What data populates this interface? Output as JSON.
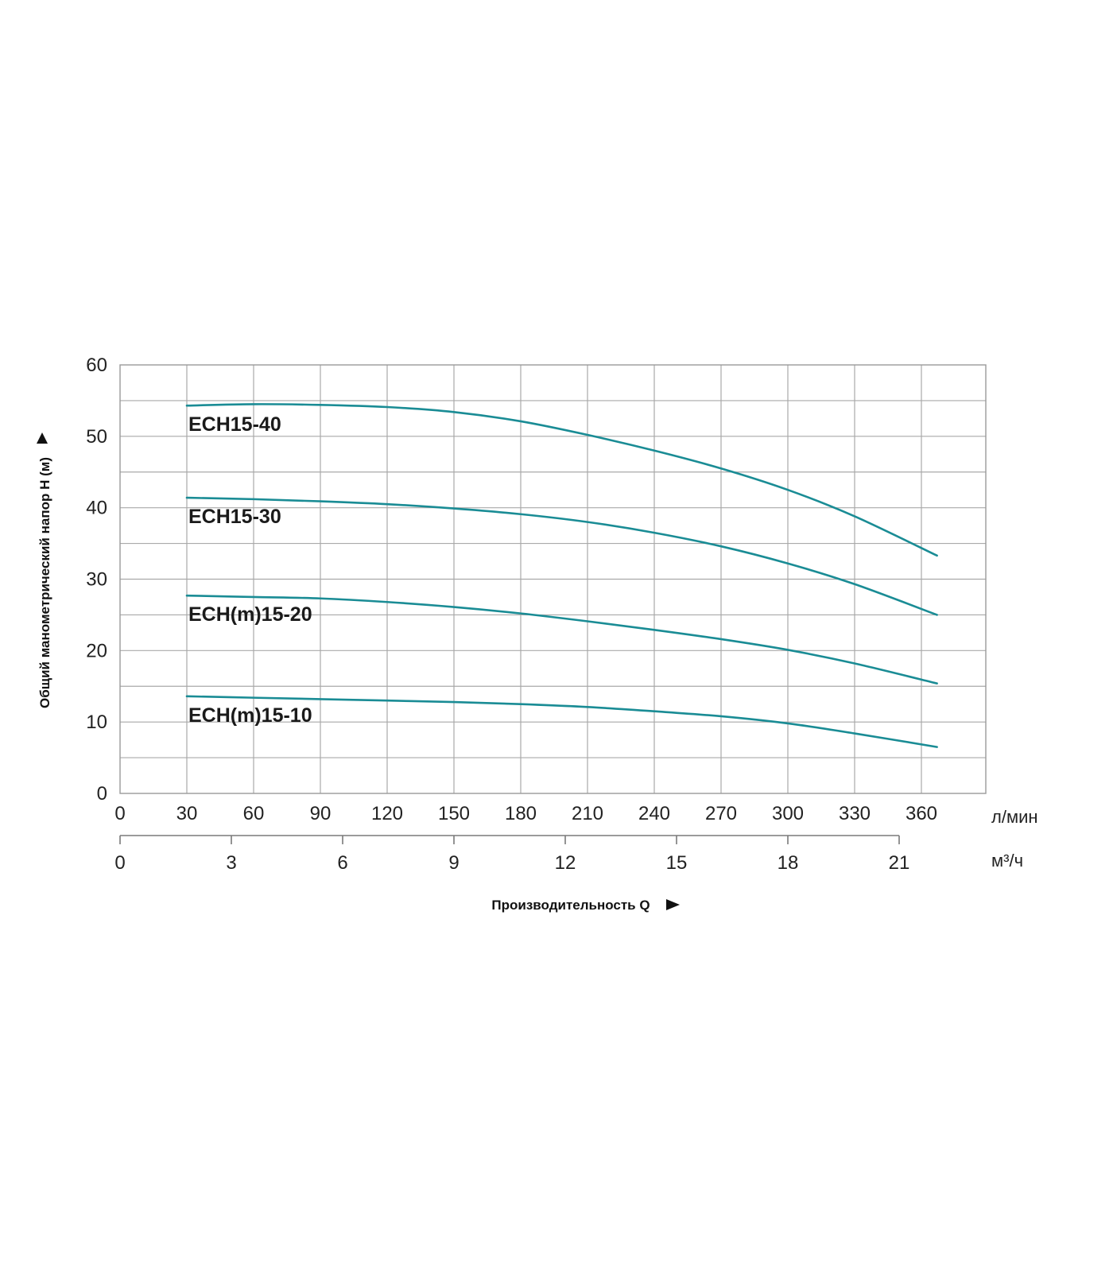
{
  "chart_data": {
    "type": "line",
    "ylabel": "Общий манометрический напор H (м)",
    "xlabel": "Производительность Q",
    "ylim": [
      0,
      60
    ],
    "y_ticks": [
      "0",
      "10",
      "20",
      "30",
      "40",
      "50",
      "60"
    ],
    "x_axis_primary": {
      "unit": "л/мин",
      "ticks": [
        "0",
        "30",
        "60",
        "90",
        "120",
        "150",
        "180",
        "210",
        "240",
        "270",
        "300",
        "330",
        "360"
      ]
    },
    "x_axis_secondary": {
      "unit": "м³/ч",
      "ticks": [
        "0",
        "3",
        "6",
        "9",
        "12",
        "15",
        "18",
        "21"
      ]
    },
    "grid": true,
    "line_color": "#1a8c95",
    "series": [
      {
        "name": "ECH15-40",
        "x": [
          30,
          60,
          90,
          120,
          150,
          180,
          210,
          240,
          270,
          300,
          330,
          367
        ],
        "y": [
          54.3,
          54.5,
          54.4,
          54.1,
          53.4,
          52.1,
          50.2,
          48.0,
          45.5,
          42.5,
          38.8,
          33.3
        ]
      },
      {
        "name": "ECH15-30",
        "x": [
          30,
          60,
          90,
          120,
          150,
          180,
          210,
          240,
          270,
          300,
          330,
          367
        ],
        "y": [
          41.4,
          41.2,
          40.9,
          40.5,
          39.9,
          39.1,
          38.0,
          36.5,
          34.6,
          32.2,
          29.3,
          25.0
        ]
      },
      {
        "name": "ECH(m)15-20",
        "x": [
          30,
          60,
          90,
          120,
          150,
          180,
          210,
          240,
          270,
          300,
          330,
          367
        ],
        "y": [
          27.7,
          27.5,
          27.3,
          26.8,
          26.1,
          25.2,
          24.1,
          22.9,
          21.6,
          20.1,
          18.2,
          15.4
        ]
      },
      {
        "name": "ECH(m)15-10",
        "x": [
          30,
          60,
          90,
          120,
          150,
          180,
          210,
          240,
          270,
          300,
          330,
          367
        ],
        "y": [
          13.6,
          13.4,
          13.2,
          13.0,
          12.8,
          12.5,
          12.1,
          11.5,
          10.8,
          9.8,
          8.4,
          6.5
        ]
      }
    ]
  }
}
